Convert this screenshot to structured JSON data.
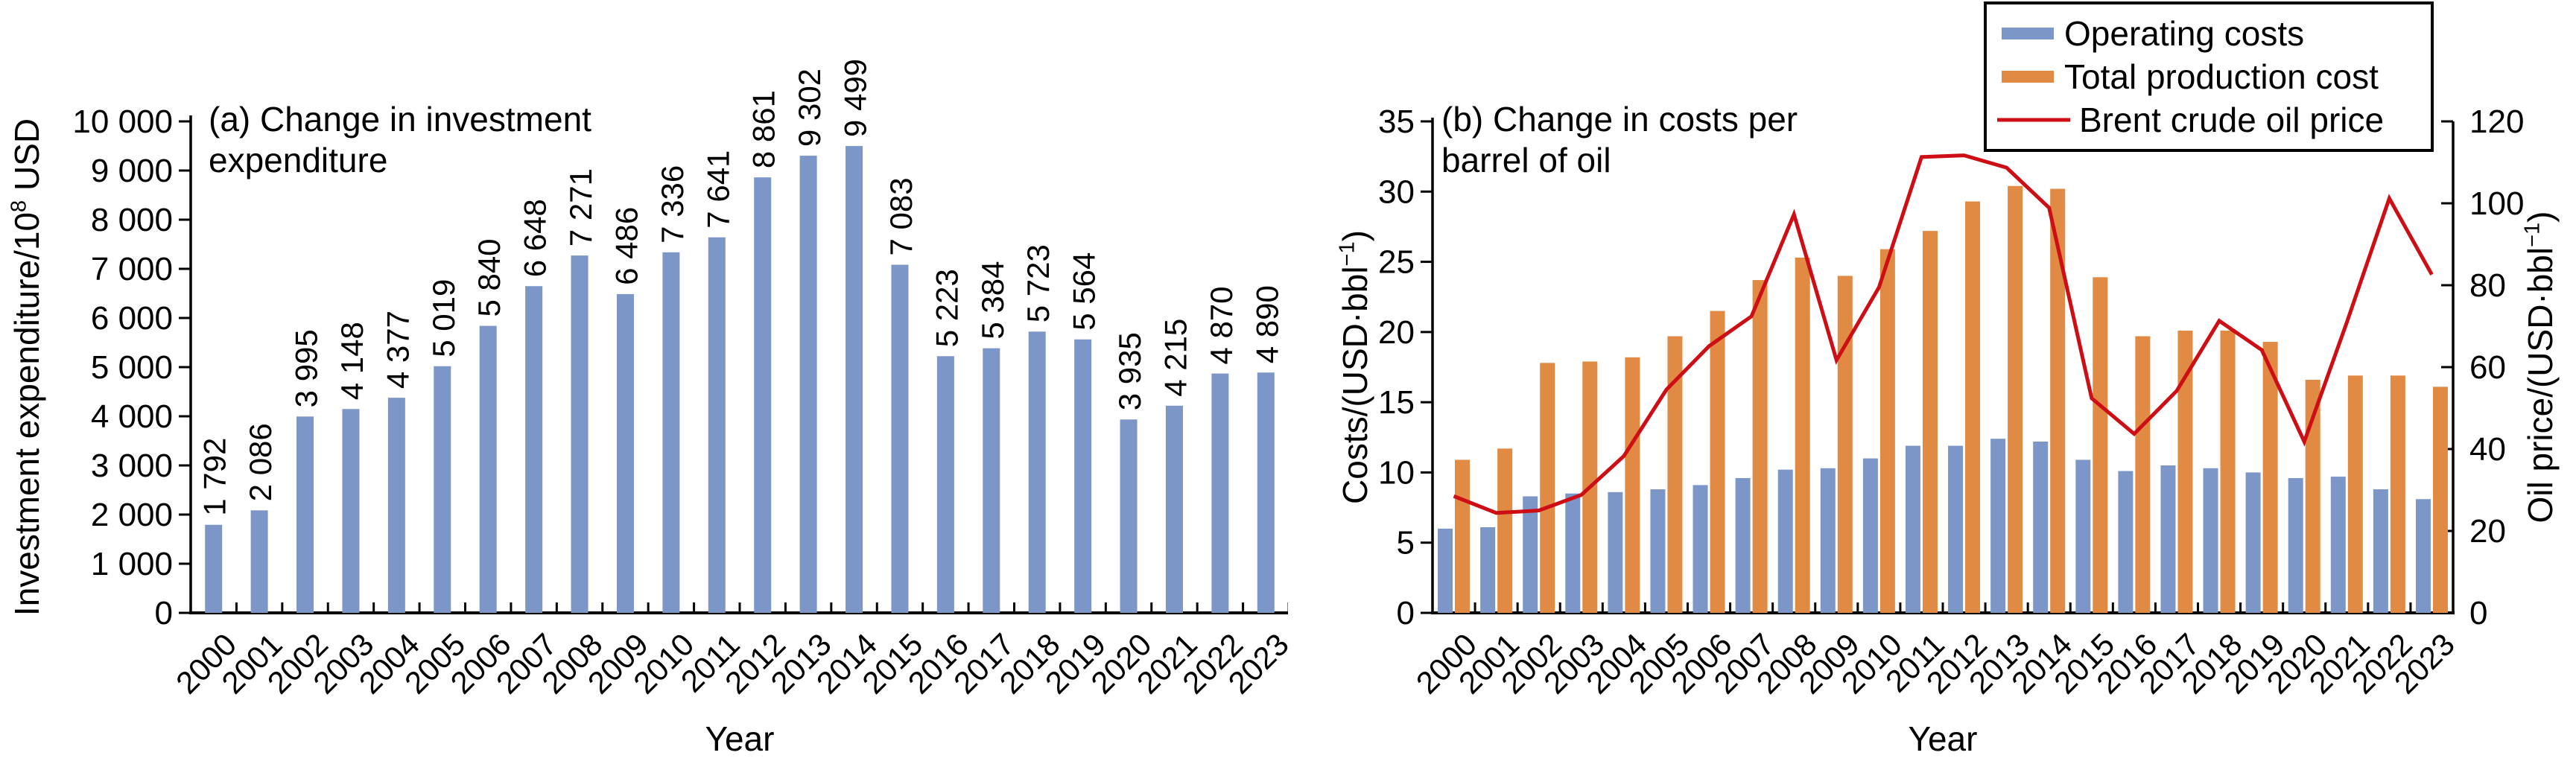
{
  "colors": {
    "bar_blue": "#7D96C8",
    "bar_orange": "#E08A44",
    "line_red": "#CE0E15",
    "axis": "#000000",
    "background": "#ffffff"
  },
  "chart_data": [
    {
      "id": "panel-a",
      "type": "bar",
      "title": "(a) Change in investment expenditure",
      "title_lines": [
        "(a) Change in investment",
        "expenditure"
      ],
      "xlabel": "Year",
      "ylabel": "Investment expenditure/10^{8} USD",
      "ylim": [
        0,
        10000
      ],
      "ytick_step": 1000,
      "ytick_labels": [
        "0",
        "1 000",
        "2 000",
        "3 000",
        "4 000",
        "5 000",
        "6 000",
        "7 000",
        "8 000",
        "9 000",
        "10 000"
      ],
      "grid": false,
      "categories": [
        "2000",
        "2001",
        "2002",
        "2003",
        "2004",
        "2005",
        "2006",
        "2007",
        "2008",
        "2009",
        "2010",
        "2011",
        "2012",
        "2013",
        "2014",
        "2015",
        "2016",
        "2017",
        "2018",
        "2019",
        "2020",
        "2021",
        "2022",
        "2023"
      ],
      "series": [
        {
          "name": "Investment expenditure",
          "type": "bar",
          "color_ref": "bar_blue",
          "values": [
            1792,
            2086,
            3995,
            4148,
            4377,
            5019,
            5840,
            6648,
            7271,
            6486,
            7336,
            7641,
            8861,
            9302,
            9499,
            7083,
            5223,
            5384,
            5723,
            5564,
            3935,
            4215,
            4870,
            4890
          ],
          "bar_labels": [
            "1 792",
            "2 086",
            "3 995",
            "4 148",
            "4 377",
            "5 019",
            "5 840",
            "6 648",
            "7 271",
            "6 486",
            "7 336",
            "7 641",
            "8 861",
            "9 302",
            "9 499",
            "7 083",
            "5 223",
            "5 384",
            "5 723",
            "5 564",
            "3 935",
            "4 215",
            "4 870",
            "4 890"
          ]
        }
      ]
    },
    {
      "id": "panel-b",
      "type": "bar+line",
      "title": "(b) Change in costs per barrel of oil",
      "title_lines": [
        "(b) Change in costs per",
        "barrel of oil"
      ],
      "xlabel": "Year",
      "ylabel_left": "Costs/(USD·bbl^{−1})",
      "ylabel_right": "Oil price/(USD·bbl^{−1})",
      "ylim_left": [
        0,
        35
      ],
      "ytick_step_left": 5,
      "ytick_labels_left": [
        "0",
        "5",
        "10",
        "15",
        "20",
        "25",
        "30",
        "35"
      ],
      "ylim_right": [
        0,
        120
      ],
      "ytick_step_right": 20,
      "ytick_labels_right": [
        "0",
        "20",
        "40",
        "60",
        "80",
        "100",
        "120"
      ],
      "grid": false,
      "categories": [
        "2000",
        "2001",
        "2002",
        "2003",
        "2004",
        "2005",
        "2006",
        "2007",
        "2008",
        "2009",
        "2010",
        "2011",
        "2012",
        "2013",
        "2014",
        "2015",
        "2016",
        "2017",
        "2018",
        "2019",
        "2020",
        "2021",
        "2022",
        "2023"
      ],
      "series": [
        {
          "name": "Operating costs",
          "type": "bar",
          "axis": "left",
          "color_ref": "bar_blue",
          "values": [
            6.0,
            6.1,
            8.3,
            8.5,
            8.6,
            8.8,
            9.1,
            9.6,
            10.2,
            10.3,
            11.0,
            11.9,
            11.9,
            12.4,
            12.2,
            10.9,
            10.1,
            10.5,
            10.3,
            10.0,
            9.6,
            9.7,
            8.8,
            8.1
          ]
        },
        {
          "name": "Total production cost",
          "type": "bar",
          "axis": "left",
          "color_ref": "bar_orange",
          "values": [
            10.9,
            11.7,
            17.8,
            17.9,
            18.2,
            19.7,
            21.5,
            23.7,
            25.3,
            24.0,
            25.9,
            27.2,
            29.3,
            30.4,
            30.2,
            23.9,
            19.7,
            20.1,
            20.1,
            19.3,
            16.6,
            16.9,
            16.9,
            16.1
          ]
        },
        {
          "name": "Brent crude oil price",
          "type": "line",
          "axis": "right",
          "color_ref": "line_red",
          "values": [
            28.5,
            24.4,
            25.0,
            28.8,
            38.3,
            54.5,
            65.1,
            72.4,
            97.3,
            61.7,
            79.5,
            111.3,
            111.7,
            108.7,
            98.9,
            52.4,
            43.7,
            54.2,
            71.3,
            64.2,
            41.8,
            70.9,
            101.2,
            82.6
          ]
        }
      ],
      "legend": {
        "position": "top-right",
        "entries": [
          "Operating costs",
          "Total production cost",
          "Brent crude oil price"
        ]
      }
    }
  ]
}
